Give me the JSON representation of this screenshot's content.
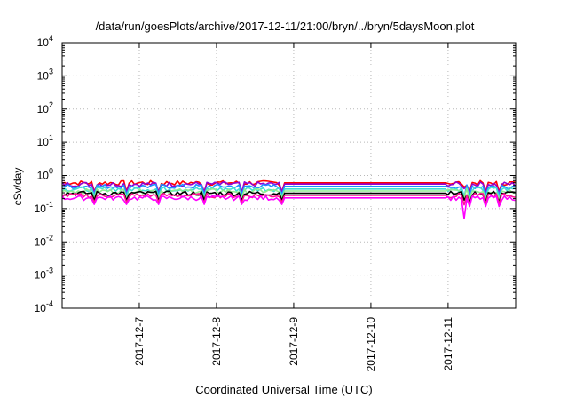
{
  "chart_data": {
    "type": "line",
    "title": "/data/run/goesPlots/archive/2017-12-11/21:00/bryn/../bryn/5daysMoon.plot",
    "xlabel": "Coordinated Universal Time (UTC)",
    "ylabel": "cSv/day",
    "yscale": "log",
    "ylim": [
      0.0001,
      10000
    ],
    "yticks": [
      {
        "value": 0.0001,
        "base": "10",
        "exp": "-4"
      },
      {
        "value": 0.001,
        "base": "10",
        "exp": "-3"
      },
      {
        "value": 0.01,
        "base": "10",
        "exp": "-2"
      },
      {
        "value": 0.1,
        "base": "10",
        "exp": "-1"
      },
      {
        "value": 1,
        "base": "10",
        "exp": "0"
      },
      {
        "value": 10,
        "base": "10",
        "exp": "1"
      },
      {
        "value": 100,
        "base": "10",
        "exp": "2"
      },
      {
        "value": 1000,
        "base": "10",
        "exp": "3"
      },
      {
        "value": 10000,
        "base": "10",
        "exp": "4"
      }
    ],
    "xlim": [
      "2017-12-06 00:00",
      "2017-12-11 21:00"
    ],
    "xticks": [
      {
        "value": "2017-12-07 00:00",
        "label": "2017-12-7"
      },
      {
        "value": "2017-12-08 00:00",
        "label": "2017-12-8"
      },
      {
        "value": "2017-12-09 00:00",
        "label": "2017-12-9"
      },
      {
        "value": "2017-12-10 00:00",
        "label": "2017-12-10"
      },
      {
        "value": "2017-12-11 00:00",
        "label": "2017-12-11"
      }
    ],
    "grid": true,
    "data_gap": [
      "2017-12-08 21:00",
      "2017-12-11 00:00"
    ],
    "series": [
      {
        "color": "#ff0000",
        "level": 0.6,
        "dip": 0.45
      },
      {
        "color": "#9400d3",
        "level": 0.55,
        "dip": 0.4
      },
      {
        "color": "#1e90ff",
        "level": 0.47,
        "dip": 0.22
      },
      {
        "color": "#40e0d0",
        "level": 0.39,
        "dip": 0.24
      },
      {
        "color": "#90ee90",
        "level": 0.34,
        "dip": 0.22
      },
      {
        "color": "#000000",
        "level": 0.29,
        "dip": 0.18
      },
      {
        "color": "#ff1493",
        "level": 0.25,
        "dip": 0.13
      },
      {
        "color": "#ff00ff",
        "level": 0.21,
        "dip": 0.05
      }
    ]
  }
}
